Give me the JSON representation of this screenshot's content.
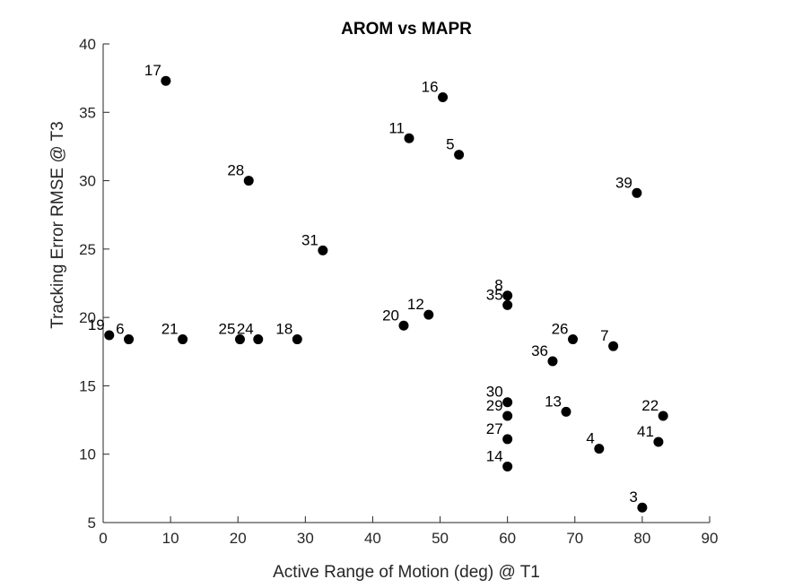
{
  "chart_data": {
    "type": "scatter",
    "title": "AROM vs MAPR",
    "xlabel": "Active Range of Motion (deg) @ T1",
    "ylabel": "Tracking Error RMSE @ T3",
    "xlim": [
      0,
      90
    ],
    "ylim": [
      5,
      40
    ],
    "xticks": [
      "0",
      "10",
      "20",
      "30",
      "40",
      "50",
      "60",
      "70",
      "80",
      "90"
    ],
    "yticks": [
      "5",
      "10",
      "15",
      "20",
      "25",
      "30",
      "35",
      "40"
    ],
    "grid": false,
    "legend": false,
    "marker_color": "#000000",
    "points": [
      {
        "label": "17",
        "x": 9.3,
        "y": 37.3
      },
      {
        "label": "16",
        "x": 50.4,
        "y": 36.1
      },
      {
        "label": "11",
        "x": 45.4,
        "y": 33.1
      },
      {
        "label": "5",
        "x": 52.8,
        "y": 31.9
      },
      {
        "label": "28",
        "x": 21.6,
        "y": 30.0
      },
      {
        "label": "39",
        "x": 79.2,
        "y": 29.1
      },
      {
        "label": "31",
        "x": 32.6,
        "y": 24.9
      },
      {
        "label": "8",
        "x": 60.0,
        "y": 21.6
      },
      {
        "label": "35",
        "x": 60.0,
        "y": 20.9
      },
      {
        "label": "12",
        "x": 48.3,
        "y": 20.2
      },
      {
        "label": "20",
        "x": 44.6,
        "y": 19.4
      },
      {
        "label": "19",
        "x": 0.9,
        "y": 18.7
      },
      {
        "label": "6",
        "x": 3.8,
        "y": 18.4
      },
      {
        "label": "21",
        "x": 11.8,
        "y": 18.4
      },
      {
        "label": "25",
        "x": 20.3,
        "y": 18.4
      },
      {
        "label": "24",
        "x": 23.0,
        "y": 18.4
      },
      {
        "label": "18",
        "x": 28.8,
        "y": 18.4
      },
      {
        "label": "26",
        "x": 69.7,
        "y": 18.4
      },
      {
        "label": "7",
        "x": 75.7,
        "y": 17.9
      },
      {
        "label": "36",
        "x": 66.7,
        "y": 16.8
      },
      {
        "label": "30",
        "x": 60.0,
        "y": 13.8
      },
      {
        "label": "29",
        "x": 60.0,
        "y": 12.8
      },
      {
        "label": "13",
        "x": 68.7,
        "y": 13.1
      },
      {
        "label": "22",
        "x": 83.1,
        "y": 12.8
      },
      {
        "label": "27",
        "x": 60.0,
        "y": 11.1
      },
      {
        "label": "41",
        "x": 82.4,
        "y": 10.9
      },
      {
        "label": "4",
        "x": 73.6,
        "y": 10.4
      },
      {
        "label": "14",
        "x": 60.0,
        "y": 9.1
      },
      {
        "label": "3",
        "x": 80.0,
        "y": 6.1
      }
    ]
  }
}
